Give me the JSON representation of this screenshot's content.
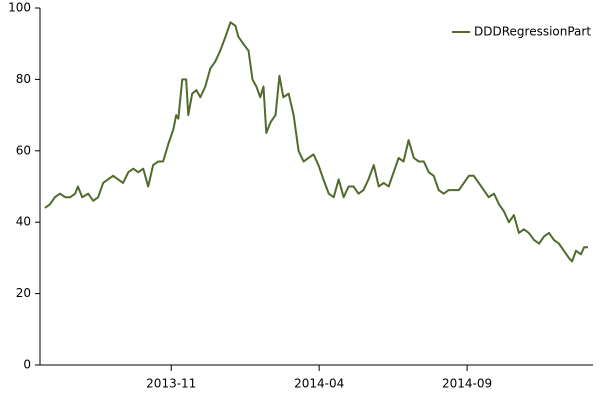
{
  "chart_data": {
    "type": "line",
    "x": [
      2013.477,
      2013.491,
      2013.505,
      2013.519,
      2013.534,
      2013.548,
      2013.562,
      2013.57,
      2013.582,
      2013.599,
      2013.613,
      2013.627,
      2013.641,
      2013.655,
      2013.669,
      2013.683,
      2013.697,
      2013.712,
      2013.726,
      2013.74,
      2013.754,
      2013.768,
      2013.782,
      2013.796,
      2013.81,
      2013.825,
      2013.839,
      2013.847,
      2013.853,
      2013.864,
      2013.875,
      2013.881,
      2013.892,
      2013.904,
      2013.915,
      2013.929,
      2013.943,
      2013.957,
      2013.971,
      2013.986,
      2014.0,
      2014.014,
      2014.022,
      2014.036,
      2014.051,
      2014.062,
      2014.073,
      2014.084,
      2014.093,
      2014.101,
      2014.113,
      2014.127,
      2014.138,
      2014.149,
      2014.164,
      2014.178,
      2014.192,
      2014.206,
      2014.22,
      2014.234,
      2014.248,
      2014.262,
      2014.277,
      2014.291,
      2014.305,
      2014.319,
      2014.333,
      2014.347,
      2014.361,
      2014.375,
      2014.389,
      2014.404,
      2014.418,
      2014.432,
      2014.446,
      2014.46,
      2014.474,
      2014.488,
      2014.502,
      2014.517,
      2014.531,
      2014.545,
      2014.559,
      2014.573,
      2014.587,
      2014.601,
      2014.615,
      2014.63,
      2014.644,
      2014.658,
      2014.672,
      2014.686,
      2014.7,
      2014.714,
      2014.728,
      2014.743,
      2014.757,
      2014.771,
      2014.785,
      2014.799,
      2014.813,
      2014.827,
      2014.841,
      2014.856,
      2014.87,
      2014.884,
      2014.898,
      2014.912,
      2014.926,
      2014.94,
      2014.954,
      2014.963,
      2014.974,
      2014.988,
      2014.997,
      2015.008
    ],
    "series": [
      {
        "name": "DDDRegressionPart",
        "color": "#526b2d",
        "values": [
          44,
          45,
          47,
          48,
          47,
          47,
          48,
          50,
          47,
          48,
          46,
          47,
          51,
          52,
          53,
          52,
          51,
          54,
          55,
          54,
          55,
          50,
          56,
          57,
          57,
          62,
          66,
          70,
          69,
          80,
          80,
          70,
          76,
          77,
          75,
          78,
          83,
          85,
          88,
          92,
          96,
          95,
          92,
          90,
          88,
          80,
          78,
          75,
          78,
          65,
          68,
          70,
          81,
          75,
          76,
          70,
          60,
          57,
          58,
          59,
          56,
          52,
          48,
          47,
          52,
          47,
          50,
          50,
          48,
          49,
          52,
          56,
          50,
          51,
          50,
          54,
          58,
          57,
          63,
          58,
          57,
          57,
          54,
          53,
          49,
          48,
          49,
          49,
          49,
          51,
          53,
          53,
          51,
          49,
          47,
          48,
          45,
          43,
          40,
          42,
          37,
          38,
          37,
          35,
          34,
          36,
          37,
          35,
          34,
          32,
          30,
          29,
          32,
          31,
          33,
          33
        ]
      }
    ],
    "xlim": [
      2013.463,
      2015.022
    ],
    "xticks": [
      {
        "value": 2013.833,
        "label": "2013-11"
      },
      {
        "value": 2014.25,
        "label": "2014-04"
      },
      {
        "value": 2014.667,
        "label": "2014-09"
      }
    ],
    "ylim": [
      0,
      100
    ],
    "yticks": [
      0,
      20,
      40,
      60,
      80,
      100
    ],
    "legend": "top-right"
  }
}
